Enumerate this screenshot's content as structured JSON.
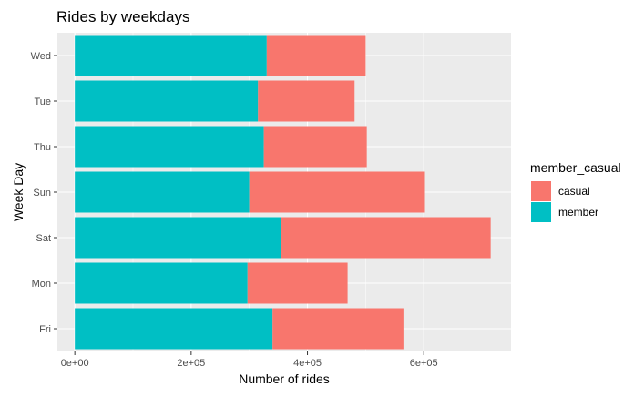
{
  "chart_data": {
    "type": "bar",
    "orientation": "horizontal",
    "stacked": true,
    "title": "Rides by weekdays",
    "xlabel": "Number of rides",
    "ylabel": "Week Day",
    "categories": [
      "Wed",
      "Tue",
      "Thu",
      "Sun",
      "Sat",
      "Mon",
      "Fri"
    ],
    "series": [
      {
        "name": "member",
        "values": [
          330000,
          315000,
          325000,
          300000,
          355000,
          297000,
          340000
        ]
      },
      {
        "name": "casual",
        "values": [
          170000,
          166000,
          177000,
          302000,
          360000,
          172000,
          225000
        ]
      }
    ],
    "xlim": [
      -30000,
      750000
    ],
    "x_ticks": [
      0,
      200000,
      400000,
      600000
    ],
    "x_tick_labels": [
      "0e+00",
      "2e+05",
      "4e+05",
      "6e+05"
    ],
    "legend_title": "member_casual",
    "legend_order": [
      "casual",
      "member"
    ],
    "legend_position": "right",
    "grid": true,
    "colors": {
      "member": "#00BFC4",
      "casual": "#F8766D",
      "panel": "#EBEBEB",
      "grid": "#FFFFFF"
    }
  }
}
